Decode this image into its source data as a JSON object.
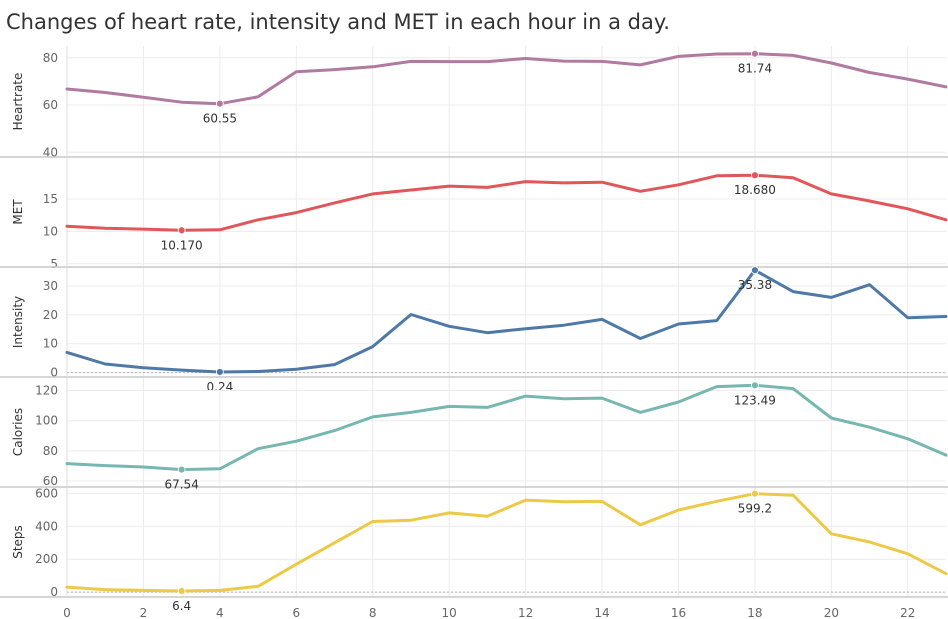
{
  "chart_data": {
    "type": "line",
    "title": "Changes of heart rate, intensity and MET in each hour in a day.",
    "x": [
      0,
      1,
      2,
      3,
      4,
      5,
      6,
      7,
      8,
      9,
      10,
      11,
      12,
      13,
      14,
      15,
      16,
      17,
      18,
      19,
      20,
      21,
      22,
      23
    ],
    "x_ticks": [
      "0",
      "2",
      "4",
      "6",
      "8",
      "10",
      "12",
      "14",
      "16",
      "18",
      "20",
      "22"
    ],
    "xlim": [
      0,
      23
    ],
    "grid": true,
    "panels": [
      {
        "name": "Heartrate",
        "ylabel": "Heartrate",
        "color": "#b07aa1",
        "ylim": [
          38,
          85
        ],
        "y_ticks": [
          40,
          60,
          80
        ],
        "tick_labels": [
          "40",
          "60",
          "80"
        ],
        "zero_line": false,
        "values": [
          66.8,
          65.3,
          63.3,
          61.2,
          60.55,
          63.5,
          74.1,
          75.0,
          76.2,
          78.5,
          78.4,
          78.4,
          79.7,
          78.6,
          78.5,
          77.0,
          80.6,
          81.6,
          81.74,
          81.0,
          77.8,
          73.8,
          71.0,
          67.7
        ],
        "highlights": [
          {
            "index": 4,
            "label": "60.55"
          },
          {
            "index": 18,
            "label": "81.74"
          }
        ]
      },
      {
        "name": "MET",
        "ylabel": "MET",
        "color": "#e15759",
        "ylim": [
          4.5,
          21.5
        ],
        "y_ticks": [
          5,
          10,
          15
        ],
        "tick_labels": [
          "5",
          "10",
          "15"
        ],
        "zero_line": false,
        "values": [
          10.8,
          10.5,
          10.35,
          10.17,
          10.25,
          11.8,
          12.9,
          14.4,
          15.8,
          16.4,
          17.0,
          16.8,
          17.7,
          17.5,
          17.6,
          16.2,
          17.2,
          18.6,
          18.68,
          18.3,
          15.8,
          14.7,
          13.5,
          11.8
        ],
        "highlights": [
          {
            "index": 3,
            "label": "10.170"
          },
          {
            "index": 18,
            "label": "18.680"
          }
        ]
      },
      {
        "name": "Intensity",
        "ylabel": "Intensity",
        "color": "#4e79a7",
        "ylim": [
          -1.5,
          36.5
        ],
        "y_ticks": [
          0,
          10,
          20,
          30
        ],
        "tick_labels": [
          "0",
          "10",
          "20",
          "30"
        ],
        "zero_line": true,
        "values": [
          7.0,
          3.0,
          1.7,
          0.9,
          0.24,
          0.4,
          1.2,
          2.8,
          9.0,
          20.1,
          16.0,
          13.8,
          15.2,
          16.4,
          18.4,
          11.8,
          16.8,
          18.0,
          35.38,
          28.0,
          26.0,
          30.4,
          19.0,
          19.4
        ],
        "highlights": [
          {
            "index": 4,
            "label": "0.24"
          },
          {
            "index": 18,
            "label": "35.38"
          }
        ]
      },
      {
        "name": "Calories",
        "ylabel": "Calories",
        "color": "#76b7b2",
        "ylim": [
          56,
          129
        ],
        "y_ticks": [
          60,
          80,
          100,
          120
        ],
        "tick_labels": [
          "60",
          "80",
          "100",
          "120"
        ],
        "zero_line": false,
        "values": [
          71.5,
          70.2,
          69.3,
          67.54,
          68.1,
          81.4,
          86.4,
          93.4,
          102.5,
          105.5,
          109.5,
          108.8,
          116.3,
          114.6,
          115.0,
          105.5,
          112.4,
          122.6,
          123.49,
          121.3,
          101.8,
          95.7,
          88.0,
          77.2
        ],
        "highlights": [
          {
            "index": 3,
            "label": "67.54"
          },
          {
            "index": 18,
            "label": "123.49"
          }
        ]
      },
      {
        "name": "Steps",
        "ylabel": "Steps",
        "color": "#edc948",
        "ylim": [
          -30,
          640
        ],
        "y_ticks": [
          0,
          200,
          400,
          600
        ],
        "tick_labels": [
          "0",
          "200",
          "400",
          "600"
        ],
        "zero_line": true,
        "values": [
          30,
          15,
          10,
          6.4,
          10,
          35,
          170,
          300,
          430,
          438,
          482,
          462,
          560,
          550,
          552,
          410,
          500,
          553,
          599.2,
          590,
          355,
          305,
          233,
          112
        ],
        "highlights": [
          {
            "index": 3,
            "label": "6.4"
          },
          {
            "index": 18,
            "label": "599.2"
          }
        ]
      }
    ]
  }
}
